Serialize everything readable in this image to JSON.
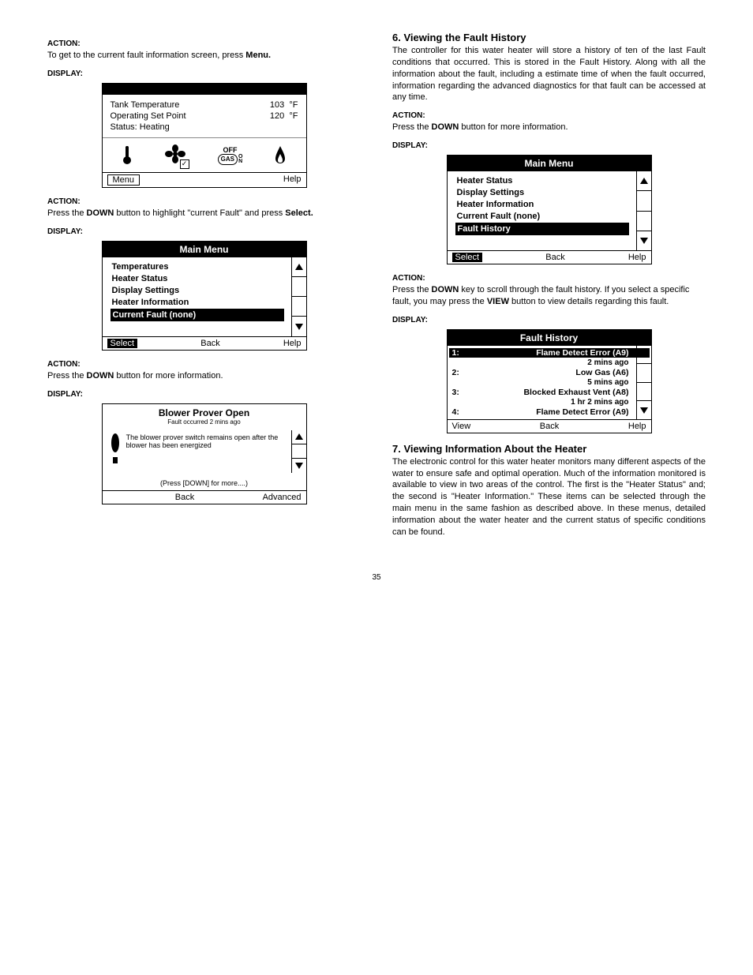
{
  "page_number": "35",
  "left": {
    "action1": {
      "label": "ACTION:",
      "text_a": "To get to the current fault information screen, press ",
      "text_b": "Menu."
    },
    "display1_label": "DISPLAY:",
    "display1": {
      "row1_label": "Tank Temperature",
      "row1_val": "103",
      "row1_unit": "°F",
      "row2_label": "Operating Set Point",
      "row2_val": "120",
      "row2_unit": "°F",
      "row3_label": "Status: Heating",
      "off": "OFF",
      "gas": "GAS",
      "on": "O\nN",
      "menu_btn": "Menu",
      "help_btn": "Help"
    },
    "action2": {
      "label": "ACTION:",
      "text_a": "Press the ",
      "text_b": "DOWN",
      "text_c": " button to highlight \"current Fault\" and press ",
      "text_d": "Select."
    },
    "display2_label": "DISPLAY:",
    "display2": {
      "title": "Main Menu",
      "items": [
        "Temperatures",
        "Heater Status",
        "Display Settings",
        "Heater Information",
        "Current Fault (none)"
      ],
      "selected_index": 4,
      "footer": {
        "left": "Select",
        "mid": "Back",
        "right": "Help"
      }
    },
    "action3": {
      "label": "ACTION:",
      "text_a": "Press the ",
      "text_b": "DOWN",
      "text_c": " button for more information."
    },
    "display3_label": "DISPLAY:",
    "display3": {
      "title": "Blower Prover Open",
      "subtitle": "Fault occurred 2 mins ago",
      "body": "The blower prover switch remains open after the blower has been energized",
      "more": "(Press [DOWN] for more....)",
      "footer": {
        "mid": "Back",
        "right": "Advanced"
      }
    }
  },
  "right": {
    "section6": {
      "heading": "6.  Viewing the Fault History",
      "para": "The controller for this water heater will store a history of ten of the last Fault conditions that occurred.  This is stored in the Fault History.  Along with all the information about the fault, including a estimate time of when the fault occurred, information regarding the advanced diagnostics for that fault can be accessed at any time."
    },
    "action1": {
      "label": "ACTION:",
      "text_a": "Press the ",
      "text_b": "DOWN",
      "text_c": " button for more information."
    },
    "display1_label": "DISPLAY:",
    "display1": {
      "title": "Main Menu",
      "items": [
        "Heater Status",
        "Display Settings",
        "Heater Information",
        "Current Fault (none)",
        "Fault History"
      ],
      "selected_index": 4,
      "footer": {
        "left": "Select",
        "mid": "Back",
        "right": "Help"
      }
    },
    "action2": {
      "label": "ACTION:",
      "text_a": "Press the ",
      "text_b": "DOWN",
      "text_c": " key to scroll through the fault history.   If you select a specific fault, you may press the ",
      "text_d": "VIEW",
      "text_e": " button to view details regarding this fault."
    },
    "display2_label": "DISPLAY:",
    "display2": {
      "title": "Fault History",
      "rows": [
        {
          "num": "1:",
          "txt": "Flame Detect Error (A9)",
          "time": "2 mins ago",
          "sel": true
        },
        {
          "num": "2:",
          "txt": "Low Gas (A6)",
          "time": "5 mins ago",
          "sel": false
        },
        {
          "num": "3:",
          "txt": "Blocked Exhaust Vent (A8)",
          "time": "1 hr 2 mins ago",
          "sel": false
        },
        {
          "num": "4:",
          "txt": "Flame Detect Error (A9)",
          "time": "",
          "sel": false
        }
      ],
      "footer": {
        "left": "View",
        "mid": "Back",
        "right": "Help"
      }
    },
    "section7": {
      "heading": "7.  Viewing Information About the Heater",
      "para": "The electronic control for this water heater monitors many different aspects of the water to ensure safe and optimal operation.  Much of the information monitored is available to view in two areas of the control.   The first is the \"Heater Status\" and; the second is \"Heater Information.\"   These items can be selected through the main menu in the same fashion as described above.   In these menus, detailed information about the water heater and the current status of specific conditions can be found."
    }
  }
}
